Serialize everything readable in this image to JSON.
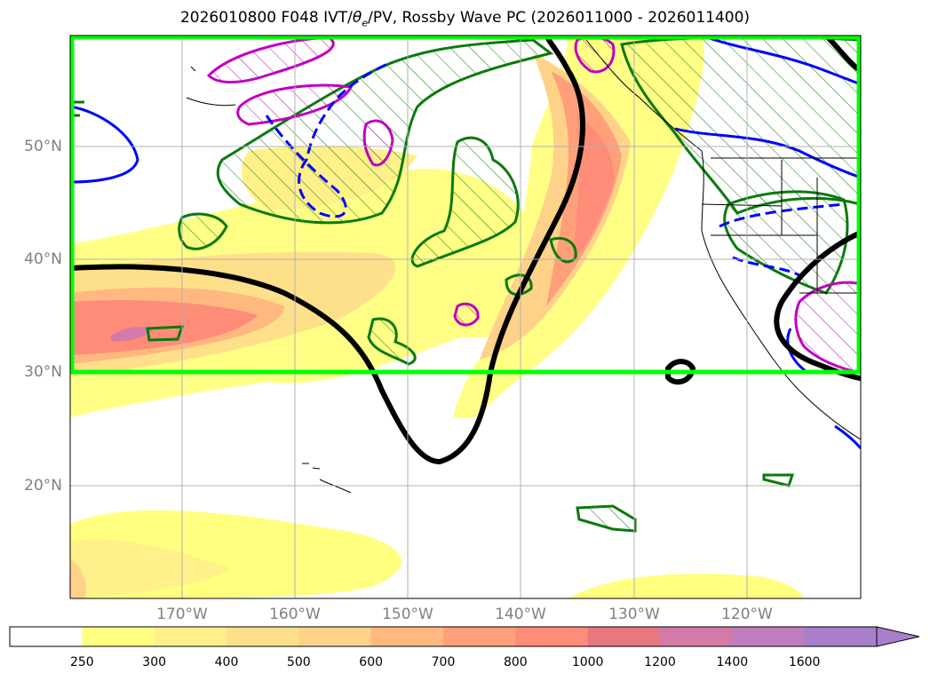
{
  "title": "2026010800 F048 IVT/",
  "title_theta": "θ",
  "title_sub": "e",
  "title_tail": "/PV, Rossby Wave PC (2026011000 - 2026011400)",
  "map": {
    "lat_labels": [
      "50°N",
      "40°N",
      "30°N",
      "20°N"
    ],
    "lon_labels": [
      "170°W",
      "160°W",
      "150°W",
      "140°W",
      "130°W",
      "120°W"
    ],
    "box_color": "#00ff00",
    "pv_contour_color": "#000000",
    "hatched_contour_color": "#0a7a0a",
    "magenta_contour_color": "#c000c0",
    "blue_contour_color": "#0000ff"
  },
  "colorbar": {
    "levels": [
      "250",
      "300",
      "400",
      "500",
      "600",
      "700",
      "800",
      "1000",
      "1200",
      "1400",
      "1600"
    ],
    "colors": [
      "#ffffff",
      "#ffff80",
      "#fff08a",
      "#ffe08a",
      "#ffd28a",
      "#ffb880",
      "#ffa07a",
      "#ff8c78",
      "#e87880",
      "#d47aa8",
      "#bf7fbf",
      "#a97fcc"
    ],
    "extend": "max"
  }
}
